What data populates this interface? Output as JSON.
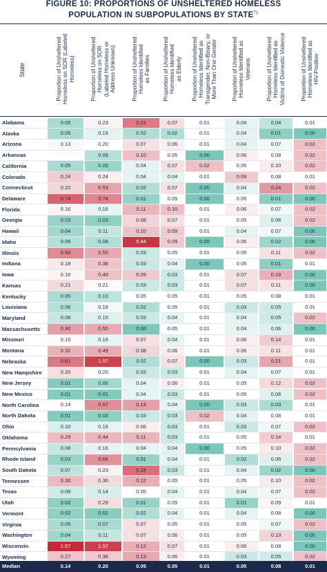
{
  "title": {
    "line1": "FIGURE 10: PROPORTIONS OF UNSHELTERED HOMELESS",
    "line2": "POPULATION IN SUBPOPULATIONS BY STATE",
    "footnote_mark": "71"
  },
  "chart_data": {
    "type": "table",
    "row_header": "State",
    "columns": [
      {
        "label": "Proportion of Unsheltered Homeless on SOR (Labeled Homeless)",
        "lines": [
          "Proportion of Unsheltered",
          "Homeless on SOR (Labeled",
          "Homeless)"
        ]
      },
      {
        "label": "Proportion of Unsheltered Homeless on SOR (Labeled Homeless or Address Unknown)",
        "lines": [
          "Proportion of Unsheltered",
          "Homeless on SOR",
          "(Labeled Homeless or",
          "Address Unknown)"
        ]
      },
      {
        "label": "Proportion of Unsheltered Homeless Identified as Families",
        "lines": [
          "Proportion of Unsheltered",
          "Homeless Identified",
          "as Families"
        ]
      },
      {
        "label": "Proportion of Unsheltered Homeless Identified as Elderly",
        "lines": [
          "Proportion of Unsheltered",
          "Homeless Identified",
          "as Elderly"
        ]
      },
      {
        "label": "Proportion of Unsheltered Homeless Identified as Transgender, Non-Binary, or More Than One Gender",
        "lines": [
          "Proportion of Unsheltered",
          "Homeless Identified as",
          "Transgender, Non-Binary, or",
          "More Than One Gender"
        ]
      },
      {
        "label": "Proportion of Unsheltered Homeless Identified as Veterans",
        "lines": [
          "Proportion of Unsheltered",
          "Homeless Identified as",
          "Veterans"
        ]
      },
      {
        "label": "Proportion of Unsheltered Homeless Identified as Victims of Domestic Violence",
        "lines": [
          "Proportion of Unsheltered",
          "Homeless Identified as",
          "Victims of Domestic Violence"
        ]
      },
      {
        "label": "Proportion of Unsheltered Homeless Identified as HIV-Positive",
        "lines": [
          "Proportion of Unsheltered",
          "Homeless Identified as",
          "HIV-Positive"
        ]
      }
    ],
    "rows": [
      {
        "state": "Alabama",
        "values": [
          "0.05",
          "0.23",
          "0.21",
          "0.07",
          "0.01",
          "0.04",
          "0.04",
          "0.01"
        ]
      },
      {
        "state": "Alaska",
        "values": [
          "0.05",
          "0.16",
          "0.02",
          "0.02",
          "0.01",
          "0.04",
          "0.01",
          "0.00"
        ]
      },
      {
        "state": "Arizona",
        "values": [
          "0.13",
          "0.20",
          "0.07",
          "0.06",
          "0.01",
          "0.04",
          "0.07",
          "0.02"
        ]
      },
      {
        "state": "Arkansas",
        "values": [
          "",
          "0.09",
          "0.10",
          "0.05",
          "0.00",
          "0.06",
          "0.08",
          "0.02"
        ]
      },
      {
        "state": "California",
        "values": [
          "0.05",
          "0.05",
          "0.04",
          "0.07",
          "0.02",
          "0.05",
          "0.10",
          "0.02"
        ]
      },
      {
        "state": "Colorado",
        "values": [
          "0.24",
          "0.24",
          "0.04",
          "0.04",
          "0.01",
          "0.09",
          "0.08",
          "0.01"
        ]
      },
      {
        "state": "Connecticut",
        "values": [
          "0.22",
          "0.53",
          "0.02",
          "0.07",
          "0.00",
          "0.04",
          "0.24",
          "0.02"
        ]
      },
      {
        "state": "Delaware",
        "values": [
          "0.74",
          "0.74",
          "0.01",
          "0.05",
          "0.00",
          "0.05",
          "0.01",
          "0.00"
        ]
      },
      {
        "state": "Florida",
        "values": [
          "0.16",
          "0.16",
          "0.11",
          "0.10",
          "0.01",
          "0.06",
          "0.07",
          "0.02"
        ]
      },
      {
        "state": "Georgia",
        "values": [
          "0.03",
          "0.03",
          "0.08",
          "0.07",
          "0.01",
          "0.05",
          "0.06",
          "0.02"
        ]
      },
      {
        "state": "Hawaii",
        "values": [
          "0.04",
          "0.11",
          "0.10",
          "0.09",
          "0.01",
          "0.04",
          "0.07",
          "0.00"
        ]
      },
      {
        "state": "Idaho",
        "values": [
          "0.06",
          "0.08",
          "0.44",
          "0.09",
          "0.00",
          "0.06",
          "0.02",
          "0.00"
        ]
      },
      {
        "state": "Illinois",
        "values": [
          "0.50",
          "0.50",
          "0.03",
          "0.05",
          "0.01",
          "0.05",
          "0.11",
          "0.02"
        ]
      },
      {
        "state": "Indiana",
        "values": [
          "0.18",
          "0.38",
          "0.03",
          "0.04",
          "0.00",
          "0.05",
          "0.01",
          "0.01"
        ]
      },
      {
        "state": "Iowa",
        "values": [
          "0.16",
          "0.40",
          "0.09",
          "0.03",
          "0.01",
          "0.07",
          "0.19",
          "0.00"
        ]
      },
      {
        "state": "Kansas",
        "values": [
          "0.21",
          "0.21",
          "0.03",
          "0.03",
          "0.01",
          "0.07",
          "0.11",
          "0.00"
        ]
      },
      {
        "state": "Kentucky",
        "values": [
          "0.05",
          "0.10",
          "0.05",
          "0.05",
          "0.01",
          "0.05",
          "0.08",
          "0.01"
        ]
      },
      {
        "state": "Louisiana",
        "values": [
          "0.06",
          "0.18",
          "0.02",
          "0.05",
          "0.01",
          "0.03",
          "0.05",
          "0.01"
        ]
      },
      {
        "state": "Maryland",
        "values": [
          "0.08",
          "0.15",
          "0.03",
          "0.04",
          "0.01",
          "0.04",
          "0.05",
          "0.02"
        ]
      },
      {
        "state": "Massachusetts",
        "values": [
          "0.40",
          "0.50",
          "0.00",
          "0.05",
          "0.01",
          "0.04",
          "0.06",
          "0.00"
        ]
      },
      {
        "state": "Missouri",
        "values": [
          "0.15",
          "0.16",
          "0.07",
          "0.04",
          "0.01",
          "0.06",
          "0.14",
          "0.01"
        ]
      },
      {
        "state": "Montana",
        "values": [
          "0.32",
          "0.49",
          "0.08",
          "0.06",
          "0.01",
          "0.06",
          "0.11",
          "0.01"
        ]
      },
      {
        "state": "Nebraska",
        "values": [
          "0.61",
          "1.57",
          "0.02",
          "0.07",
          "0.00",
          "0.03",
          "0.21",
          "0.01"
        ]
      },
      {
        "state": "New Hampshire",
        "values": [
          "0.20",
          "0.20",
          "0.03",
          "0.03",
          "0.01",
          "0.04",
          "0.07",
          "0.01"
        ]
      },
      {
        "state": "New Jersey",
        "values": [
          "0.01",
          "0.06",
          "0.04",
          "0.06",
          "0.01",
          "0.05",
          "0.12",
          "0.02"
        ]
      },
      {
        "state": "New Mexico",
        "values": [
          "0.01",
          "0.01",
          "0.04",
          "0.03",
          "0.01",
          "0.05",
          "0.06",
          "0.02"
        ]
      },
      {
        "state": "North Carolina",
        "values": [
          "0.14",
          "0.67",
          "0.14",
          "0.04",
          "0.00",
          "0.03",
          "0.03",
          "0.01"
        ]
      },
      {
        "state": "North Dakota",
        "values": [
          "0.01",
          "0.03",
          "0.03",
          "0.03",
          "0.02",
          "0.04",
          "0.08",
          "0.01"
        ]
      },
      {
        "state": "Ohio",
        "values": [
          "0.10",
          "0.16",
          "0.06",
          "0.03",
          "0.01",
          "0.03",
          "0.07",
          "0.02"
        ]
      },
      {
        "state": "Oklahoma",
        "values": [
          "0.29",
          "0.44",
          "0.11",
          "0.03",
          "0.01",
          "0.05",
          "0.14",
          "0.01"
        ]
      },
      {
        "state": "Pennsylvania",
        "values": [
          "0.08",
          "0.16",
          "0.04",
          "0.04",
          "0.00",
          "0.05",
          "0.10",
          "0.02"
        ]
      },
      {
        "state": "Rhode Island",
        "values": [
          "0.03",
          "0.66",
          "0.01",
          "0.04",
          "0.01",
          "0.02",
          "0.06",
          "0.02"
        ]
      },
      {
        "state": "South Dakota",
        "values": [
          "0.07",
          "0.23",
          "0.24",
          "0.03",
          "0.01",
          "0.04",
          "0.02",
          "0.00"
        ]
      },
      {
        "state": "Tennessee",
        "values": [
          "0.30",
          "0.30",
          "0.12",
          "0.05",
          "0.01",
          "0.05",
          "0.10",
          "0.02"
        ]
      },
      {
        "state": "Texas",
        "values": [
          "0.09",
          "0.14",
          "0.05",
          "0.04",
          "0.01",
          "0.04",
          "0.07",
          "0.02"
        ]
      },
      {
        "state": "Utah",
        "values": [
          "0.02",
          "0.29",
          "0.01",
          "0.05",
          "0.01",
          "0.01",
          "0.09",
          "0.01"
        ]
      },
      {
        "state": "Vermont",
        "values": [
          "0.02",
          "0.02",
          "0.02",
          "0.04",
          "0.01",
          "0.04",
          "0.08",
          "0.00"
        ]
      },
      {
        "state": "Virginia",
        "values": [
          "0.05",
          "0.07",
          "0.07",
          "0.05",
          "0.01",
          "0.05",
          "0.07",
          "0.02"
        ]
      },
      {
        "state": "Washington",
        "values": [
          "0.04",
          "0.11",
          "0.07",
          "0.06",
          "0.01",
          "0.05",
          "0.13",
          "0.00"
        ]
      },
      {
        "state": "Wisconsin",
        "values": [
          "1.57",
          "1.57",
          "0.12",
          "0.07",
          "0.01",
          "0.06",
          "0.08",
          "0.00"
        ]
      },
      {
        "state": "Wyoming",
        "values": [
          "0.27",
          "0.36",
          "0.13",
          "0.06",
          "0.01",
          "0.03",
          "0.05",
          "0.02"
        ]
      }
    ],
    "summary_row": {
      "label": "Median",
      "values": [
        "0.14",
        "0.20",
        "0.05",
        "0.05",
        "0.01",
        "0.05",
        "0.08",
        "0.01"
      ]
    },
    "colors": {
      "low_teal": "#0f9b7d",
      "high_red": "#c21f2f",
      "footer": "#1b2a4a",
      "text": "#1b2a4a"
    }
  }
}
